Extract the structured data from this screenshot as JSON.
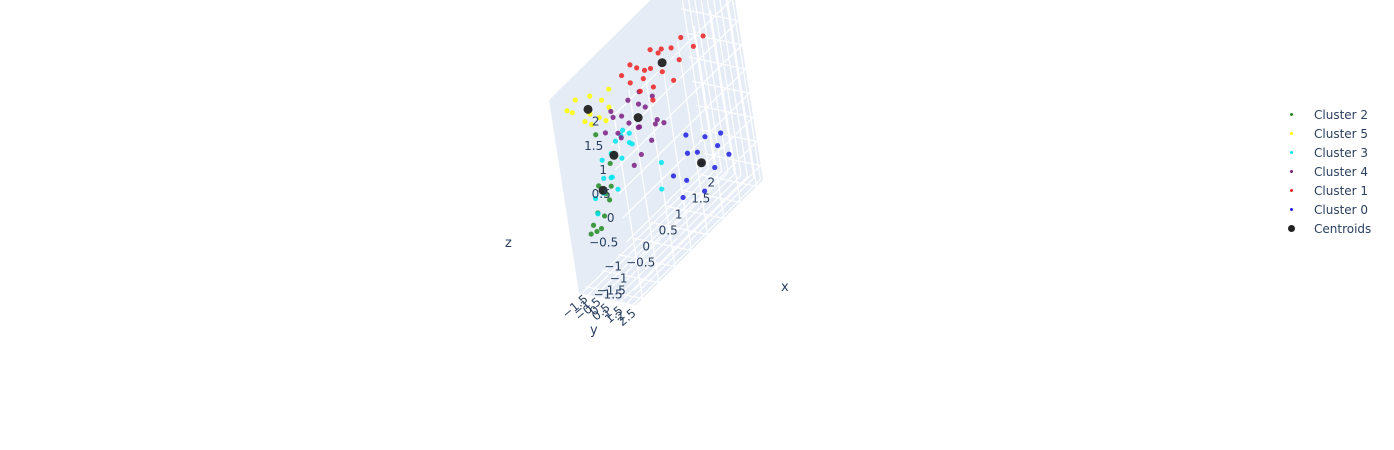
{
  "chart_data": {
    "type": "scatter",
    "dimensions": 3,
    "xlabel": "x",
    "ylabel": "y",
    "zlabel": "z",
    "x_ticks": [
      "−1.5",
      "−1",
      "−0.5",
      "0",
      "0.5",
      "1",
      "1.5",
      "2"
    ],
    "y_ticks": [
      "−1.5",
      "−1",
      "−0.5",
      "0",
      "0.5",
      "1",
      "1.5",
      "2",
      "2.5"
    ],
    "z_ticks": [
      "−1.5",
      "−1",
      "−0.5",
      "0",
      "0.5",
      "1",
      "1.5",
      "2"
    ],
    "xlim": [
      -1.7,
      2.2
    ],
    "ylim": [
      -1.7,
      2.7
    ],
    "zlim": [
      -1.8,
      2.2
    ],
    "grid": true,
    "legend_position": "right",
    "series": [
      {
        "name": "Cluster 2",
        "color": "#228b22",
        "points": [
          [
            -1.2,
            -1.5,
            -0.9
          ],
          [
            -1.1,
            -1.3,
            -0.9
          ],
          [
            -1.0,
            -1.2,
            -0.9
          ],
          [
            -0.9,
            -1.1,
            -0.7
          ],
          [
            -1.1,
            -1.0,
            -0.5
          ],
          [
            -0.8,
            -1.0,
            -0.3
          ],
          [
            -1.0,
            -0.9,
            0.0
          ],
          [
            -0.7,
            -0.8,
            -0.2
          ],
          [
            -0.6,
            -0.9,
            0.2
          ],
          [
            -0.9,
            -0.8,
            1.0
          ],
          [
            -1.2,
            -1.2,
            -0.7
          ],
          [
            -0.7,
            -1.1,
            -0.5
          ]
        ]
      },
      {
        "name": "Cluster 5",
        "color": "#ffff00",
        "points": [
          [
            -1.4,
            -1.3,
            1.8
          ],
          [
            -1.2,
            -1.1,
            1.9
          ],
          [
            -1.3,
            -1.2,
            1.7
          ],
          [
            -0.9,
            -0.8,
            1.8
          ],
          [
            -1.0,
            -0.7,
            1.5
          ],
          [
            -0.7,
            -0.5,
            1.6
          ],
          [
            -0.8,
            -0.6,
            1.3
          ],
          [
            -0.6,
            -0.7,
            1.1
          ],
          [
            -1.1,
            -0.9,
            1.4
          ],
          [
            -0.5,
            -0.4,
            1.7
          ],
          [
            -0.9,
            -1.0,
            1.2
          ],
          [
            -0.6,
            -0.3,
            1.4
          ]
        ]
      },
      {
        "name": "Cluster 3",
        "color": "#00e5ee",
        "points": [
          [
            -1.0,
            -1.3,
            -0.6
          ],
          [
            -0.8,
            -1.2,
            -0.3
          ],
          [
            -1.1,
            -1.0,
            -0.2
          ],
          [
            -0.6,
            -1.0,
            -0.1
          ],
          [
            -0.9,
            -0.7,
            0.1
          ],
          [
            -0.5,
            -0.8,
            0.3
          ],
          [
            -0.4,
            -0.5,
            0.2
          ],
          [
            -0.7,
            -0.4,
            0.5
          ],
          [
            -0.3,
            -0.6,
            0.6
          ],
          [
            -0.2,
            -0.3,
            0.4
          ],
          [
            -0.6,
            -0.2,
            0.7
          ],
          [
            -0.8,
            -0.9,
            0.4
          ],
          [
            -0.1,
            -0.4,
            0.3
          ],
          [
            -0.4,
            -0.1,
            0.8
          ],
          [
            -0.2,
            -0.2,
            0.6
          ],
          [
            -0.7,
            -0.6,
            0.0
          ],
          [
            0.1,
            0.8,
            -0.7
          ],
          [
            0.3,
            0.5,
            -0.3
          ],
          [
            -0.5,
            -0.9,
            -0.4
          ]
        ]
      },
      {
        "name": "Cluster 4",
        "color": "#7b1f82",
        "points": [
          [
            -0.8,
            -0.3,
            1.0
          ],
          [
            -0.6,
            -0.1,
            1.2
          ],
          [
            -0.4,
            0.0,
            1.1
          ],
          [
            -0.3,
            0.2,
            0.9
          ],
          [
            -0.5,
            -0.2,
            0.8
          ],
          [
            -0.2,
            0.1,
            1.3
          ],
          [
            0.0,
            0.3,
            1.1
          ],
          [
            -0.1,
            0.4,
            0.7
          ],
          [
            0.2,
            0.2,
            0.9
          ],
          [
            0.3,
            0.5,
            0.5
          ],
          [
            0.1,
            0.6,
            0.3
          ],
          [
            -0.2,
            0.5,
            0.2
          ],
          [
            0.4,
            0.3,
            1.0
          ],
          [
            -0.7,
            0.1,
            1.4
          ],
          [
            0.0,
            0.0,
            0.6
          ],
          [
            0.5,
            0.6,
            0.4
          ],
          [
            -0.4,
            0.4,
            0.1
          ],
          [
            0.2,
            -0.1,
            1.2
          ],
          [
            -0.6,
            0.3,
            0.8
          ],
          [
            0.3,
            0.7,
            0.6
          ]
        ]
      },
      {
        "name": "Cluster 1",
        "color": "#ee2222",
        "points": [
          [
            -0.2,
            -0.1,
            1.8
          ],
          [
            0.0,
            0.1,
            1.9
          ],
          [
            0.2,
            0.0,
            1.7
          ],
          [
            0.3,
            0.3,
            1.6
          ],
          [
            0.5,
            0.4,
            1.9
          ],
          [
            0.7,
            0.7,
            1.8
          ],
          [
            0.9,
            0.9,
            1.7
          ],
          [
            1.1,
            1.2,
            1.8
          ],
          [
            1.3,
            1.5,
            1.5
          ],
          [
            0.6,
            0.8,
            1.4
          ],
          [
            0.4,
            0.5,
            1.2
          ],
          [
            0.1,
            0.3,
            1.3
          ],
          [
            0.8,
            1.0,
            1.1
          ],
          [
            1.0,
            1.1,
            1.4
          ],
          [
            0.2,
            0.4,
            1.5
          ],
          [
            -0.1,
            0.2,
            1.6
          ],
          [
            0.5,
            0.2,
            1.5
          ],
          [
            1.5,
            1.8,
            1.6
          ],
          [
            0.3,
            0.6,
            1.0
          ],
          [
            0.7,
            0.4,
            1.7
          ]
        ]
      },
      {
        "name": "Cluster 0",
        "color": "#1f1fe0",
        "points": [
          [
            0.8,
            1.2,
            -0.4
          ],
          [
            1.0,
            1.4,
            -0.5
          ],
          [
            1.2,
            1.6,
            -0.3
          ],
          [
            0.9,
            1.0,
            -0.1
          ],
          [
            1.4,
            1.9,
            -0.6
          ],
          [
            1.1,
            1.3,
            -0.8
          ],
          [
            0.7,
            1.1,
            -0.9
          ],
          [
            1.3,
            1.7,
            -1.0
          ],
          [
            0.6,
            0.9,
            -1.2
          ],
          [
            1.6,
            2.1,
            -0.9
          ],
          [
            1.0,
            1.5,
            -1.3
          ],
          [
            0.5,
            0.7,
            -0.7
          ],
          [
            1.5,
            2.0,
            -0.4
          ]
        ]
      },
      {
        "name": "Centroids",
        "color": "#222222",
        "big": true,
        "points": [
          [
            -0.95,
            -0.95,
            1.55
          ],
          [
            0.65,
            0.75,
            1.55
          ],
          [
            -0.05,
            0.25,
            0.85
          ],
          [
            -0.55,
            -0.65,
            0.35
          ],
          [
            -0.85,
            -1.05,
            -0.2
          ],
          [
            1.05,
            1.45,
            -0.75
          ]
        ]
      }
    ]
  }
}
